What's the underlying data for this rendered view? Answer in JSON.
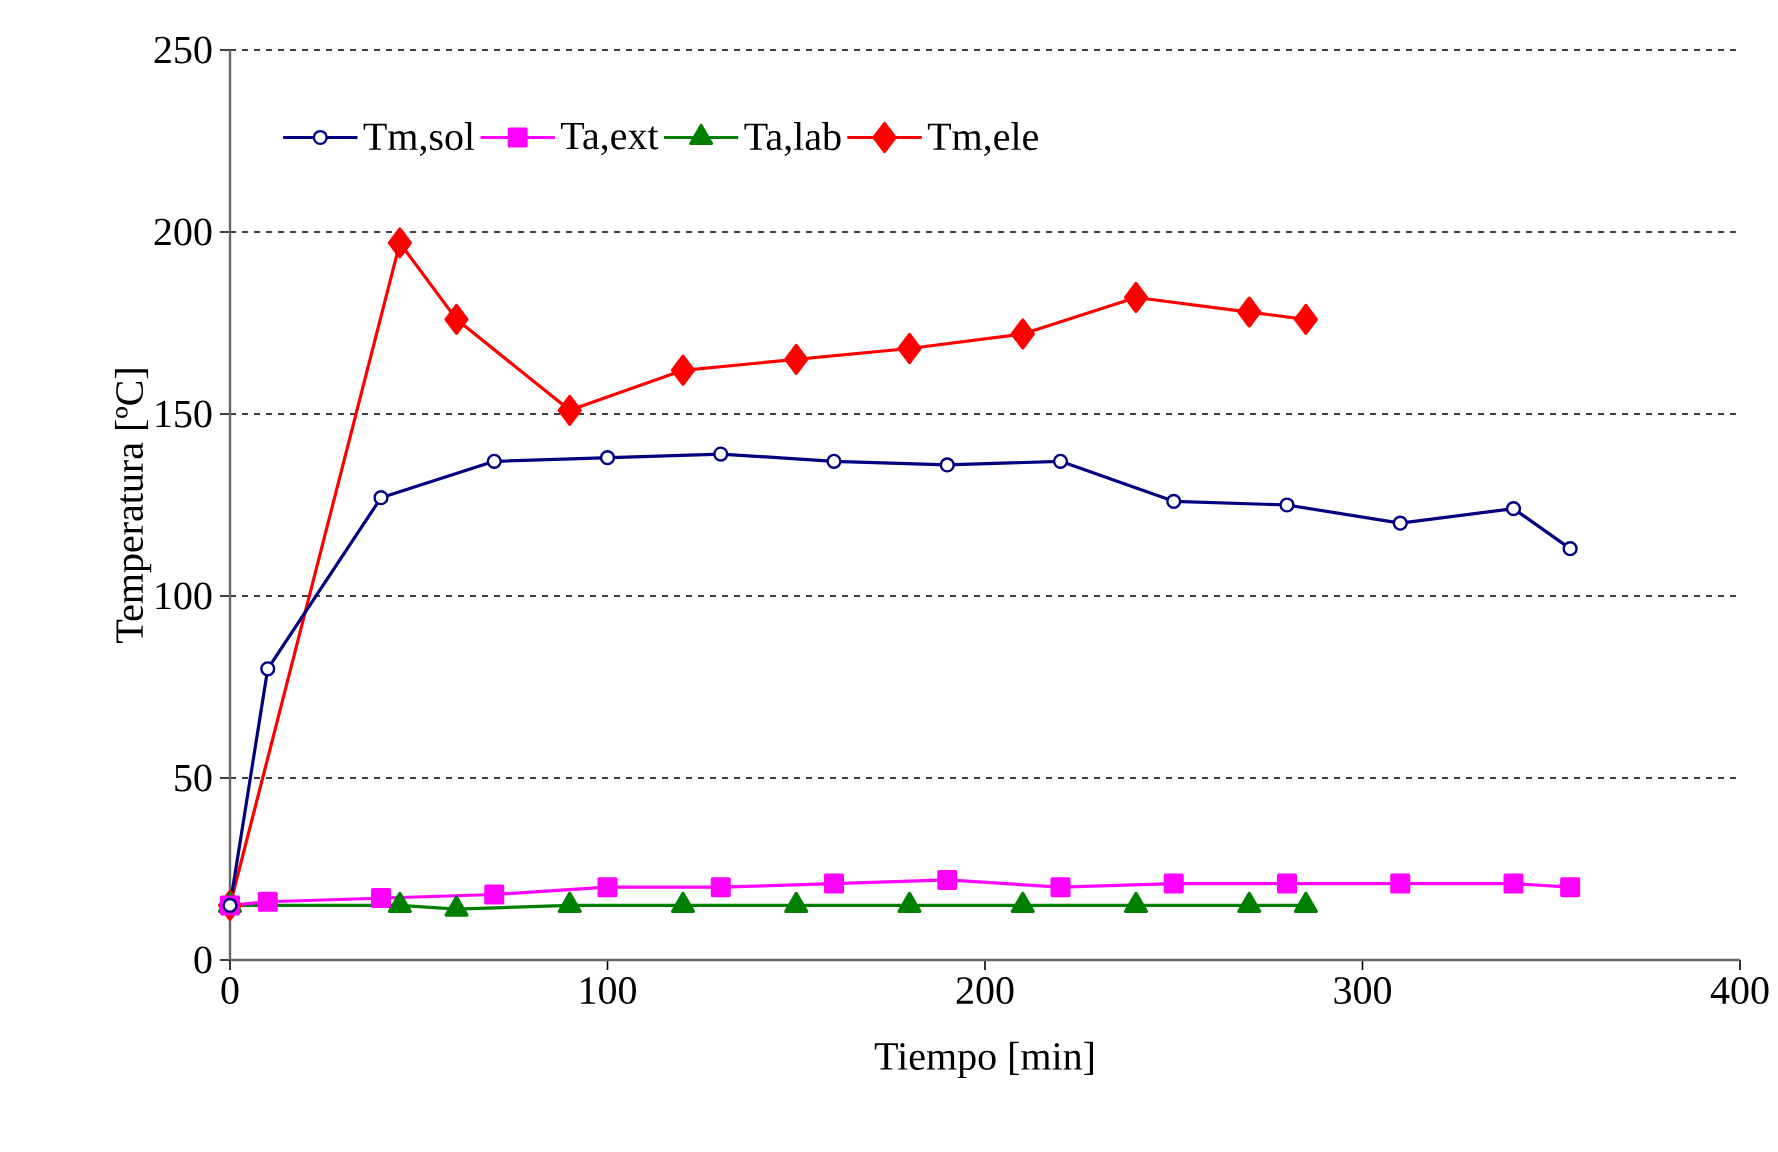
{
  "chart_data": {
    "type": "line",
    "xlabel": "Tiempo [min]",
    "ylabel": "Temperatura [ºC]",
    "xlim": [
      0,
      400
    ],
    "xticks": [
      0,
      100,
      200,
      300,
      400
    ],
    "ylim": [
      0,
      250
    ],
    "yticks": [
      0,
      50,
      100,
      150,
      200,
      250
    ],
    "grid": "y",
    "legend": "top",
    "line_style": "solid",
    "series": [
      {
        "name": "Tm,sol",
        "color": "#000080",
        "marker": "circle",
        "x": [
          0,
          10,
          40,
          70,
          100,
          130,
          160,
          190,
          220,
          250,
          280,
          310,
          340,
          355
        ],
        "values": [
          15,
          80,
          127,
          137,
          138,
          139,
          137,
          136,
          137,
          126,
          125,
          120,
          124,
          113
        ]
      },
      {
        "name": "Ta,ext",
        "color": "#ff00ff",
        "marker": "square",
        "x": [
          0,
          10,
          40,
          70,
          100,
          130,
          160,
          190,
          220,
          250,
          280,
          310,
          340,
          355
        ],
        "values": [
          15,
          16,
          17,
          18,
          20,
          20,
          21,
          22,
          20,
          21,
          21,
          21,
          21,
          20
        ]
      },
      {
        "name": "Ta,lab",
        "color": "#008000",
        "marker": "triangle",
        "x": [
          0,
          45,
          60,
          90,
          120,
          150,
          180,
          210,
          240,
          270,
          285
        ],
        "values": [
          15,
          15,
          14,
          15,
          15,
          15,
          15,
          15,
          15,
          15,
          15
        ]
      },
      {
        "name": "Tm,ele",
        "color": "#ff0000",
        "marker": "diamond",
        "x": [
          0,
          45,
          60,
          90,
          120,
          150,
          180,
          210,
          240,
          270,
          285
        ],
        "values": [
          15,
          197,
          176,
          151,
          162,
          165,
          168,
          172,
          182,
          178,
          176
        ]
      }
    ]
  }
}
